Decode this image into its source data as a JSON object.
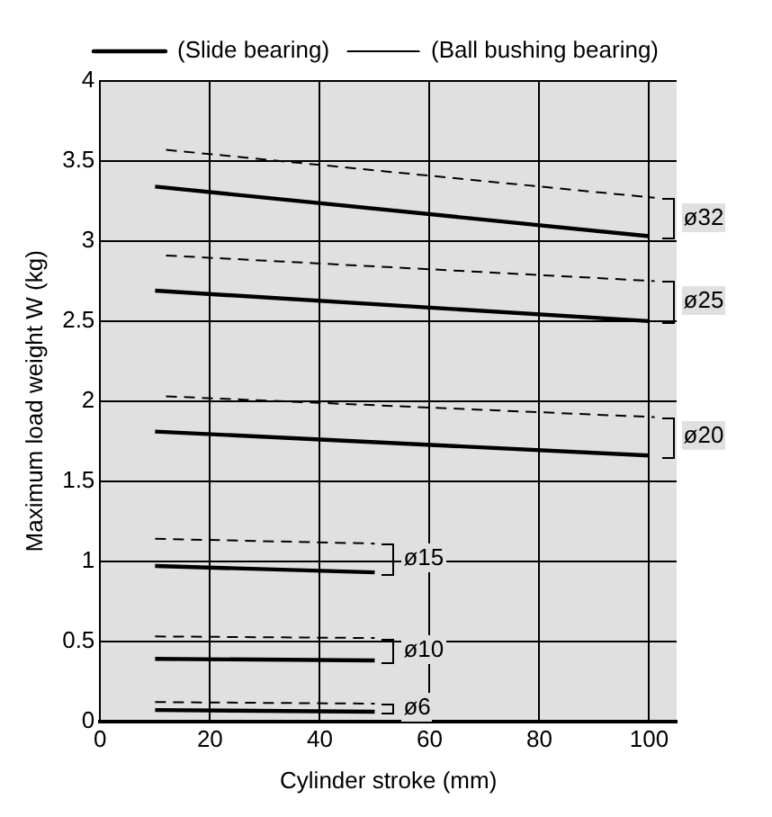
{
  "chart_data": {
    "type": "line",
    "xlabel": "Cylinder stroke (mm)",
    "ylabel": "Maximum load weight W (kg)",
    "series": [
      {
        "name": "(Slide bearing)",
        "color": "#000000",
        "line_style": "solid",
        "x": [
          10,
          100
        ],
        "values": [
          3.34,
          3.03
        ]
      },
      {
        "name": "(Ball bushing bearing)",
        "color": "#000000",
        "line_style": "dashed",
        "x": [
          12,
          101
        ],
        "values": [
          3.57,
          3.27
        ]
      },
      {
        "color": "#000000",
        "line_style": "solid",
        "x": [
          10,
          100
        ],
        "values": [
          2.69,
          2.5
        ]
      },
      {
        "color": "#000000",
        "line_style": "dashed",
        "x": [
          12,
          101
        ],
        "values": [
          2.91,
          2.75
        ]
      },
      {
        "color": "#000000",
        "line_style": "solid",
        "x": [
          10,
          100
        ],
        "values": [
          1.81,
          1.66
        ]
      },
      {
        "color": "#000000",
        "line_style": "dashed",
        "x": [
          12,
          101
        ],
        "values": [
          2.03,
          1.9
        ]
      },
      {
        "color": "#000000",
        "line_style": "solid",
        "x": [
          10,
          50
        ],
        "values": [
          0.97,
          0.93
        ]
      },
      {
        "color": "#000000",
        "line_style": "dashed",
        "x": [
          10,
          50
        ],
        "values": [
          1.14,
          1.11
        ]
      },
      {
        "color": "#000000",
        "line_style": "solid",
        "x": [
          10,
          50
        ],
        "values": [
          0.39,
          0.38
        ]
      },
      {
        "color": "#000000",
        "line_style": "dashed",
        "x": [
          10,
          50
        ],
        "values": [
          0.53,
          0.52
        ]
      },
      {
        "color": "#000000",
        "line_style": "solid",
        "x": [
          10,
          50
        ],
        "values": [
          0.07,
          0.06
        ]
      },
      {
        "color": "#000000",
        "line_style": "dashed",
        "x": [
          10,
          50
        ],
        "values": [
          0.12,
          0.11
        ]
      }
    ],
    "annotations": [
      "ø32",
      "ø25",
      "ø20",
      "ø15",
      "ø10",
      "ø6"
    ],
    "xlim": [
      0,
      105
    ],
    "xticks": [
      0,
      20,
      40,
      60,
      80,
      100
    ],
    "ylim": [
      0,
      4
    ],
    "yticks": [
      0,
      0.5,
      1,
      1.5,
      2,
      2.5,
      3,
      3.5,
      4
    ],
    "grid": true,
    "legend": "top",
    "marker": "none"
  }
}
